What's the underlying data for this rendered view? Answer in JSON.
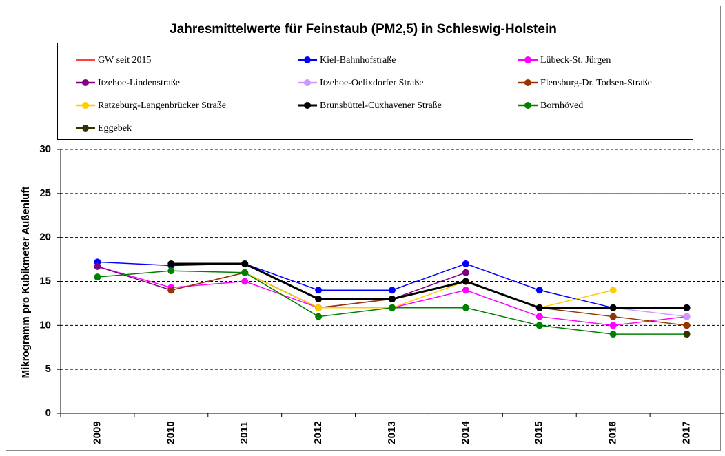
{
  "chart_data": {
    "type": "line",
    "title": "Jahresmittelwerte für Feinstaub (PM2,5) in Schleswig-Holstein",
    "y_label": "Mikrogramm pro Kubikmeter Außenluft",
    "categories": [
      "2009",
      "2010",
      "2011",
      "2012",
      "2013",
      "2014",
      "2015",
      "2016",
      "2017"
    ],
    "ylim": [
      0,
      30
    ],
    "yticks": [
      0,
      5,
      10,
      15,
      20,
      25,
      30
    ],
    "grid": true,
    "series": [
      {
        "name": "GW seit 2015",
        "color": "#ff4040",
        "markers": false,
        "values": [
          null,
          null,
          null,
          null,
          null,
          null,
          25,
          25,
          25
        ]
      },
      {
        "name": "Kiel-Bahnhofstraße",
        "color": "#0000ff",
        "values": [
          17.2,
          16.8,
          17,
          14,
          14,
          17,
          14,
          12,
          12
        ]
      },
      {
        "name": "Lübeck-St. Jürgen",
        "color": "#ff00ff",
        "values": [
          16.7,
          14.3,
          15,
          12,
          12,
          14,
          11,
          10,
          11
        ]
      },
      {
        "name": "Itzehoe-Lindenstraße",
        "color": "#800080",
        "values": [
          16.7,
          14,
          16,
          12,
          13,
          16,
          null,
          null,
          null
        ]
      },
      {
        "name": "Itzehoe-Oelixdorfer Straße",
        "color": "#cc99ff",
        "values": [
          null,
          null,
          null,
          null,
          null,
          null,
          12,
          12,
          11
        ]
      },
      {
        "name": "Flensburg-Dr. Todsen-Straße",
        "color": "#993300",
        "values": [
          null,
          14,
          16,
          12,
          13,
          15,
          12,
          11,
          10
        ]
      },
      {
        "name": "Ratzeburg-Langenbrücker Straße",
        "color": "#ffcc00",
        "values": [
          null,
          null,
          16,
          12,
          12,
          15,
          12,
          14,
          null
        ]
      },
      {
        "name": "Brunsbüttel-Cuxhavener Straße",
        "color": "#000000",
        "width": 3,
        "values": [
          null,
          17,
          17,
          13,
          13,
          15,
          12,
          12,
          12
        ]
      },
      {
        "name": "Bornhöved",
        "color": "#008000",
        "values": [
          15.5,
          16.2,
          16,
          11,
          12,
          12,
          10,
          9,
          9
        ]
      },
      {
        "name": "Eggebek",
        "color": "#333300",
        "values": [
          null,
          null,
          null,
          null,
          null,
          null,
          null,
          null,
          9
        ]
      }
    ]
  }
}
